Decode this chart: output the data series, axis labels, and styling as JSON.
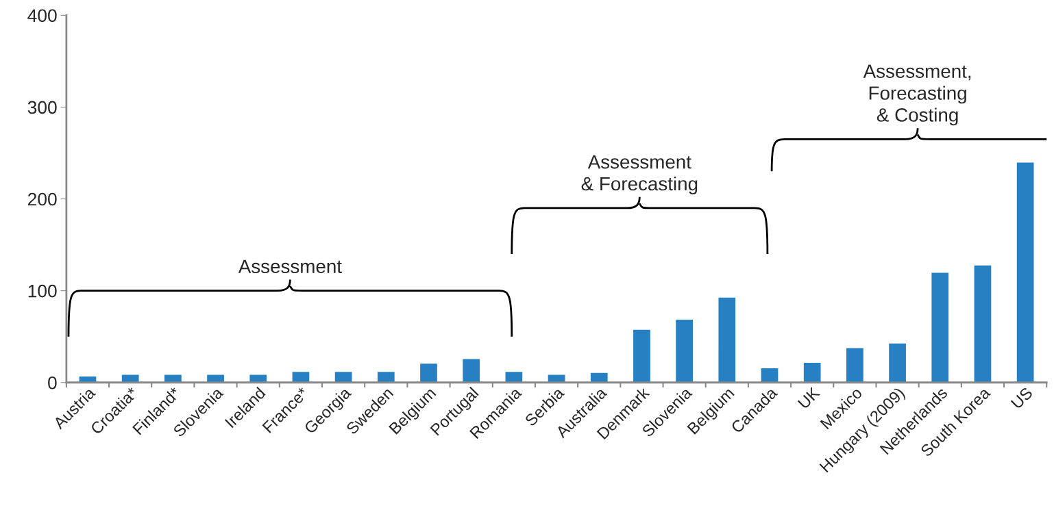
{
  "chart_data": {
    "type": "bar",
    "categories": [
      "Austria",
      "Croatia*",
      "Finland*",
      "Slovenia",
      "Ireland",
      "France*",
      "Georgia",
      "Sweden",
      "Belgium",
      "Portugal",
      "Romania",
      "Serbia",
      "Australia",
      "Denmark",
      "Slovenia",
      "Belgium",
      "Canada",
      "UK",
      "Mexico",
      "Hungary (2009)",
      "Netherlands",
      "South Korea",
      "US"
    ],
    "values": [
      7,
      9,
      9,
      9,
      9,
      12,
      12,
      12,
      21,
      26,
      12,
      9,
      11,
      58,
      69,
      93,
      16,
      22,
      38,
      43,
      120,
      128,
      240
    ],
    "color": "#2680c2",
    "ylim": [
      0,
      400
    ],
    "yticks": [
      0,
      100,
      200,
      300,
      400
    ],
    "grid": false,
    "annotations": [
      "Assessment",
      "Assessment\n& Forecasting",
      "Assessment,\nForecasting\n& Costing"
    ]
  }
}
